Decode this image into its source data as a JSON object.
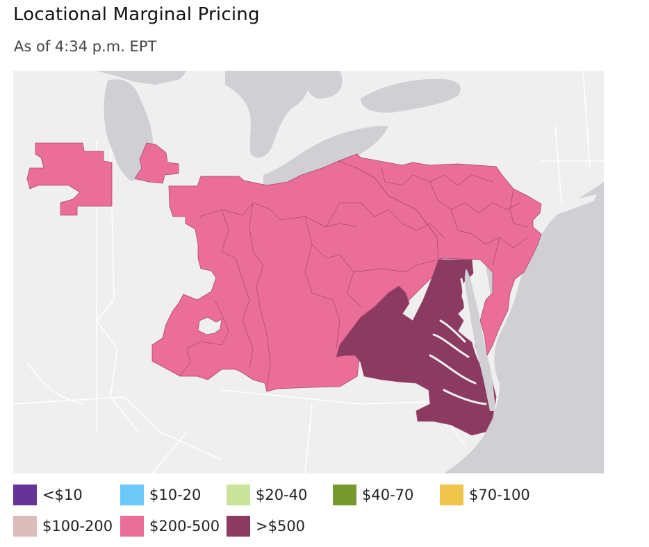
{
  "header": {
    "title": "Locational Marginal Pricing",
    "subtitle": "As of 4:34 p.m. EPT"
  },
  "map": {
    "background_color": "#efefef",
    "water_color": "#cfcfd4",
    "regions": [
      {
        "name": "northern-illinois-zone",
        "price_band": "$200-500",
        "color": "#ea6e98"
      },
      {
        "name": "northern-indiana-zone",
        "price_band": "$200-500",
        "color": "#ea6e98"
      },
      {
        "name": "ohio-west-virginia-zone",
        "price_band": "$200-500",
        "color": "#ea6e98"
      },
      {
        "name": "pennsylvania-new-jersey-zone",
        "price_band": "$200-500",
        "color": "#ea6e98"
      },
      {
        "name": "virginia-maryland-zone",
        "price_band": ">$500",
        "color": "#8b3a62"
      }
    ]
  },
  "legend": [
    {
      "label": "<$10",
      "color": "#663399"
    },
    {
      "label": "$10-20",
      "color": "#6cc8f8"
    },
    {
      "label": "$20-40",
      "color": "#c9e39a"
    },
    {
      "label": "$40-70",
      "color": "#76982e"
    },
    {
      "label": "$70-100",
      "color": "#efc54c"
    },
    {
      "label": "$100-200",
      "color": "#ddbcbc"
    },
    {
      "label": "$200-500",
      "color": "#ea6e98"
    },
    {
      "label": ">$500",
      "color": "#8b3a62"
    }
  ]
}
